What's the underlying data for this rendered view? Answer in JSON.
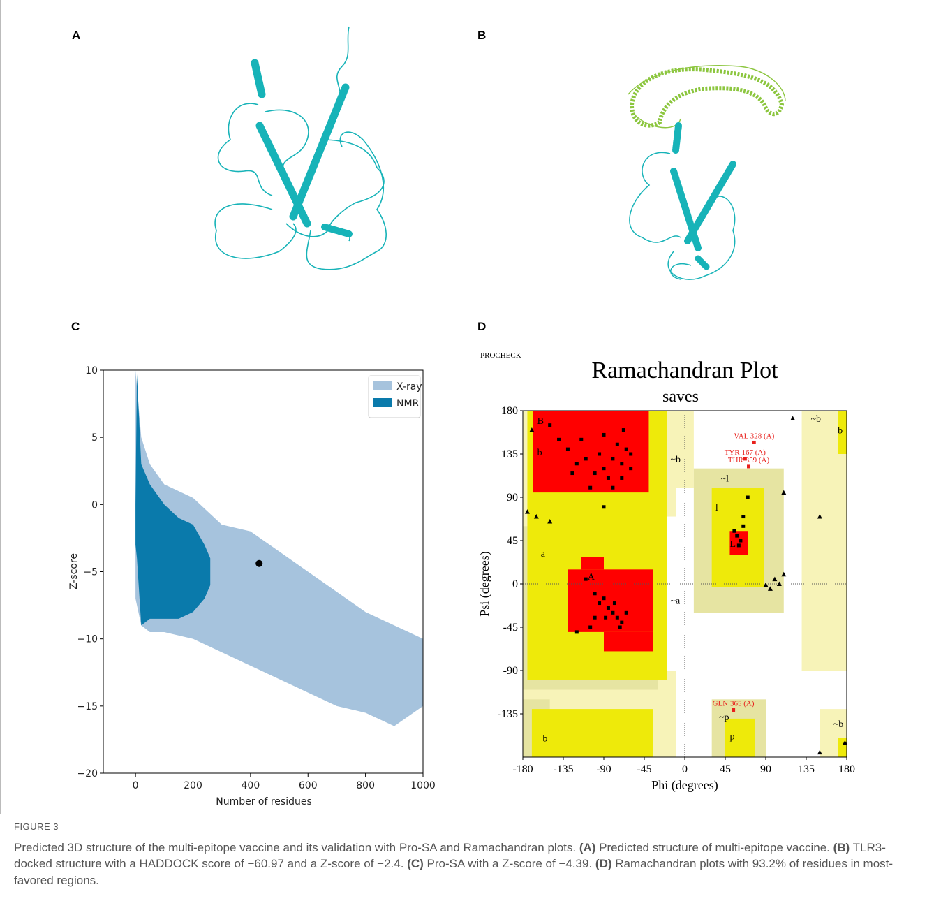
{
  "panels": {
    "a": "A",
    "b": "B",
    "c": "C",
    "d": "D"
  },
  "chart_data": [
    {
      "type": "scatter",
      "xlabel": "Number of residues",
      "ylabel": "Z-score",
      "xlim": [
        -112,
        1000
      ],
      "ylim": [
        -20,
        10
      ],
      "xticks": [
        0,
        200,
        400,
        600,
        800,
        1000
      ],
      "yticks": [
        {
          "value": -20,
          "label": "−20"
        },
        {
          "value": -15,
          "label": "−15"
        },
        {
          "value": -10,
          "label": "−10"
        },
        {
          "value": -5,
          "label": "−5"
        },
        0,
        5,
        10
      ],
      "legend": "upper right",
      "series": [
        {
          "name": "X-ray",
          "color": "#a6c3dd",
          "x": [
            0,
            20,
            50,
            100,
            200,
            300,
            400,
            500,
            600,
            700,
            800,
            900,
            1000
          ],
          "values": [
            10,
            5,
            3,
            1.5,
            0.5,
            -1.5,
            -2,
            -3.5,
            -5,
            -6.5,
            -8,
            -9,
            -10
          ],
          "lower": [
            -7,
            -9,
            -9.5,
            -9.5,
            -10,
            -11,
            -12,
            -13,
            -14,
            -15,
            -15.5,
            -16.5,
            -15
          ]
        },
        {
          "name": "NMR",
          "color": "#0a7aab",
          "x": [
            0,
            5,
            20,
            50,
            100,
            150,
            200,
            240,
            260
          ],
          "values": [
            0,
            9.7,
            3,
            1.5,
            0,
            -1,
            -1.5,
            -3,
            -4
          ],
          "lower": [
            -3,
            -4,
            -9,
            -8.5,
            -8.5,
            -8.5,
            -8,
            -7,
            -6
          ]
        }
      ],
      "points": [
        {
          "x": 430,
          "y": -4.39,
          "color": "#000000"
        }
      ]
    },
    {
      "type": "ramachandran",
      "header": "PROCHECK",
      "title": "Ramachandran Plot",
      "subtitle": "saves",
      "xlabel": "Phi (degrees)",
      "ylabel": "Psi (degrees)",
      "xlim": [
        -180,
        180
      ],
      "ylim": [
        -180,
        180
      ],
      "xticks": [
        -180,
        -135,
        -90,
        -45,
        0,
        45,
        90,
        135,
        180
      ],
      "yticks": [
        -135,
        -90,
        -45,
        0,
        45,
        90,
        135,
        180
      ],
      "series": [
        {
          "marker": "square",
          "color": "#000000",
          "x": [
            -150,
            -140,
            -130,
            -120,
            -110,
            -100,
            -95,
            -90,
            -85,
            -80,
            -75,
            -70,
            -65,
            -60,
            -70,
            -80,
            -105,
            -115,
            -125,
            -90,
            -68,
            -60,
            -90,
            -110,
            -100,
            -95,
            -90,
            -85,
            -80,
            -75,
            -70,
            -65,
            -72,
            -78,
            -88,
            -105,
            -120,
            -100,
            55,
            58,
            60,
            62,
            65,
            70,
            65
          ],
          "values": [
            165,
            150,
            140,
            125,
            130,
            115,
            135,
            120,
            110,
            130,
            145,
            125,
            140,
            120,
            110,
            100,
            100,
            150,
            115,
            155,
            160,
            135,
            80,
            5,
            -10,
            -20,
            -15,
            -25,
            -30,
            -35,
            -40,
            -30,
            -45,
            -20,
            -35,
            -45,
            -50,
            -35,
            55,
            50,
            40,
            45,
            60,
            90,
            70
          ]
        },
        {
          "marker": "triangle",
          "color": "#000000",
          "x": [
            -170,
            -165,
            -175,
            -150,
            120,
            105,
            110,
            95,
            100,
            150,
            150,
            178,
            110,
            90
          ],
          "values": [
            160,
            70,
            75,
            65,
            172,
            0,
            10,
            -5,
            5,
            70,
            -175,
            -165,
            95,
            -1
          ]
        }
      ],
      "labeled_points": [
        {
          "label": "VAL 328 (A)",
          "x": 77,
          "y": 147,
          "color": "#e8201c"
        },
        {
          "label": "TYR 167 (A)",
          "x": 67,
          "y": 130,
          "color": "#e8201c"
        },
        {
          "label": "THR 359 (A)",
          "x": 71,
          "y": 122,
          "color": "#e8201c"
        },
        {
          "label": "GLN 365 (A)",
          "x": 54,
          "y": -131,
          "color": "#e8201c"
        }
      ],
      "region_labels": [
        "B",
        "b",
        "a",
        "A",
        "~b",
        "~a",
        "~l",
        "l",
        "L",
        "~p",
        "p",
        "b",
        "~b",
        "~b",
        "b"
      ]
    }
  ],
  "caption": {
    "label": "FIGURE 3",
    "segments": [
      {
        "text": "Predicted 3D structure of the multi-epitope vaccine and its validation with Pro-SA and Ramachandran plots. ",
        "bold": false
      },
      {
        "text": "(A)",
        "bold": true
      },
      {
        "text": " Predicted structure of multi-epitope vaccine. ",
        "bold": false
      },
      {
        "text": "(B)",
        "bold": true
      },
      {
        "text": " TLR3-docked structure with a HADDOCK score of −60.97 and a Z-score of −2.4. ",
        "bold": false
      },
      {
        "text": "(C)",
        "bold": true
      },
      {
        "text": " Pro-SA with a Z-score of −4.39. ",
        "bold": false
      },
      {
        "text": "(D)",
        "bold": true
      },
      {
        "text": " Ramachandran plots with 93.2% of residues in most-favored regions.",
        "bold": false
      }
    ]
  }
}
